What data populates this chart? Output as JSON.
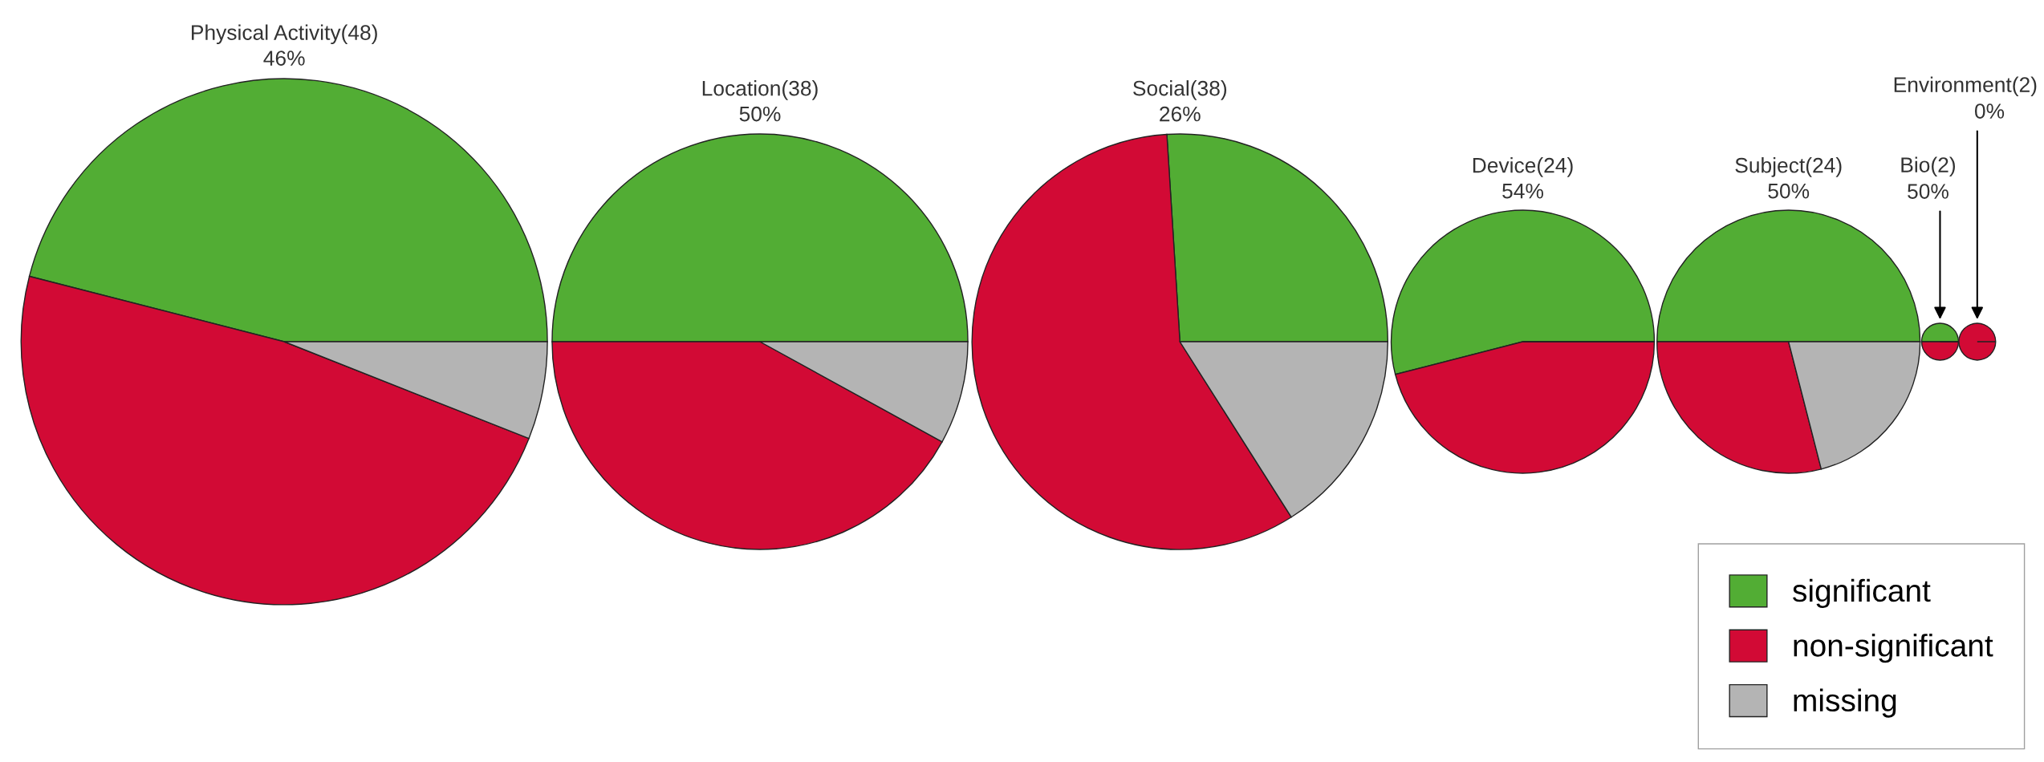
{
  "chart_data": [
    {
      "type": "pie",
      "title": "Physical Activity(48)",
      "subtitle": "46%",
      "categories": [
        "significant",
        "non-significant",
        "missing"
      ],
      "values": [
        46,
        48,
        6
      ],
      "colors": [
        "#52ad34",
        "#d20a35",
        "#b4b4b4"
      ],
      "legend": "bottom right"
    },
    {
      "type": "pie",
      "title": "Location(38)",
      "subtitle": "50%",
      "categories": [
        null,
        null,
        null
      ],
      "values": [
        50,
        42,
        8
      ],
      "colors": [
        "#52ad34",
        "#d20a35",
        "#b4b4b4"
      ]
    },
    {
      "type": "pie",
      "title": "Social(38)",
      "subtitle": "26%",
      "categories": [
        null,
        null,
        null
      ],
      "values": [
        26,
        58,
        16
      ],
      "colors": [
        "#52ad34",
        "#d20a35",
        "#b4b4b4"
      ]
    },
    {
      "type": "pie",
      "title": "Device(24)",
      "subtitle": "54%",
      "categories": [
        null,
        null,
        null
      ],
      "values": [
        54,
        46,
        0
      ],
      "colors": [
        "#52ad34",
        "#d20a35",
        "#b4b4b4"
      ]
    },
    {
      "type": "pie",
      "title": "Subject(24)",
      "subtitle": "50%",
      "categories": [
        null,
        null,
        null
      ],
      "values": [
        50,
        29,
        21
      ],
      "colors": [
        "#52ad34",
        "#d20a35",
        "#b4b4b4"
      ]
    },
    {
      "type": "pie",
      "title": "Bio(2)",
      "subtitle": "50%",
      "categories": [
        null,
        null,
        null
      ],
      "values": [
        50,
        50,
        0
      ],
      "colors": [
        "#52ad34",
        "#d20a35",
        "#b4b4b4"
      ]
    },
    {
      "type": "pie",
      "title": "Environment(2)",
      "subtitle": "0%",
      "categories": [
        null,
        null,
        null
      ],
      "values": [
        0,
        100,
        0
      ],
      "colors": [
        "#52ad34",
        "#d20a35",
        "#b4b4b4"
      ]
    }
  ]
}
